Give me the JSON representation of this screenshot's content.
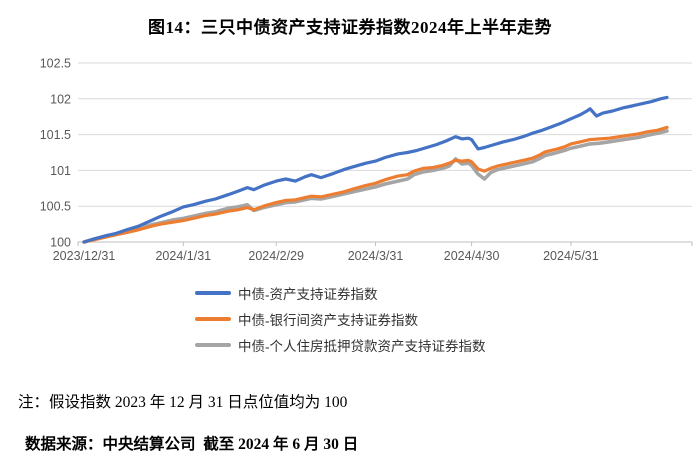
{
  "title": "图14：三只中债资产支持证券指数2024年上半年走势",
  "notes": {
    "note": "注：假设指数 2023 年 12 月 31 日点位值均为 100",
    "source": "数据来源：中央结算公司  截至 2024 年 6 月 30 日"
  },
  "colors": {
    "series_blue": "#4472C4",
    "series_orange": "#ED7D31",
    "series_gray": "#A5A5A5",
    "gridline": "#D9D9D9",
    "axis_line": "#BFBFBF",
    "tick_label": "#595959"
  },
  "chart_data": {
    "type": "line",
    "title": "图14：三只中债资产支持证券指数2024年上半年走势",
    "xlabel": "",
    "ylabel": "",
    "grid": true,
    "legend_position": "bottom-left",
    "ylim": [
      100,
      102.5
    ],
    "y_ticks": [
      100,
      100.5,
      101,
      101.5,
      102,
      102.5
    ],
    "x_unit": "days since 2023/12/31",
    "x_range_days": [
      0,
      182
    ],
    "x_tick_days": [
      0,
      31,
      60,
      91,
      121,
      152
    ],
    "x_tick_labels": [
      "2023/12/31",
      "2024/1/31",
      "2024/2/29",
      "2024/3/31",
      "2024/4/30",
      "2024/5/31"
    ],
    "series": [
      {
        "name": "中债-资产支持证券指数",
        "color": "#4472C4",
        "stroke_width": 3.2,
        "points": [
          [
            0,
            100.0
          ],
          [
            3,
            100.04
          ],
          [
            7,
            100.09
          ],
          [
            10,
            100.12
          ],
          [
            14,
            100.18
          ],
          [
            17,
            100.22
          ],
          [
            21,
            100.3
          ],
          [
            24,
            100.36
          ],
          [
            28,
            100.43
          ],
          [
            31,
            100.49
          ],
          [
            34,
            100.52
          ],
          [
            38,
            100.57
          ],
          [
            41,
            100.6
          ],
          [
            45,
            100.66
          ],
          [
            48,
            100.71
          ],
          [
            51,
            100.76
          ],
          [
            53,
            100.73
          ],
          [
            56,
            100.79
          ],
          [
            60,
            100.85
          ],
          [
            63,
            100.88
          ],
          [
            66,
            100.85
          ],
          [
            69,
            100.91
          ],
          [
            71,
            100.94
          ],
          [
            74,
            100.9
          ],
          [
            78,
            100.96
          ],
          [
            81,
            101.01
          ],
          [
            84,
            101.05
          ],
          [
            88,
            101.1
          ],
          [
            91,
            101.13
          ],
          [
            94,
            101.18
          ],
          [
            98,
            101.23
          ],
          [
            101,
            101.25
          ],
          [
            104,
            101.28
          ],
          [
            107,
            101.32
          ],
          [
            110,
            101.36
          ],
          [
            113,
            101.41
          ],
          [
            116,
            101.47
          ],
          [
            118,
            101.44
          ],
          [
            120,
            101.45
          ],
          [
            121,
            101.43
          ],
          [
            123,
            101.3
          ],
          [
            125,
            101.32
          ],
          [
            128,
            101.36
          ],
          [
            131,
            101.4
          ],
          [
            134,
            101.43
          ],
          [
            137,
            101.47
          ],
          [
            140,
            101.52
          ],
          [
            143,
            101.56
          ],
          [
            146,
            101.61
          ],
          [
            149,
            101.66
          ],
          [
            152,
            101.72
          ],
          [
            155,
            101.78
          ],
          [
            157,
            101.83
          ],
          [
            158,
            101.86
          ],
          [
            160,
            101.76
          ],
          [
            162,
            101.8
          ],
          [
            165,
            101.83
          ],
          [
            168,
            101.87
          ],
          [
            171,
            101.9
          ],
          [
            174,
            101.93
          ],
          [
            177,
            101.96
          ],
          [
            180,
            102.0
          ],
          [
            182,
            102.02
          ]
        ]
      },
      {
        "name": "中债-银行间资产支持证券指数",
        "color": "#ED7D31",
        "stroke_width": 3.2,
        "points": [
          [
            0,
            100.0
          ],
          [
            3,
            100.03
          ],
          [
            7,
            100.07
          ],
          [
            10,
            100.1
          ],
          [
            14,
            100.14
          ],
          [
            17,
            100.17
          ],
          [
            21,
            100.22
          ],
          [
            24,
            100.25
          ],
          [
            28,
            100.28
          ],
          [
            31,
            100.3
          ],
          [
            34,
            100.33
          ],
          [
            38,
            100.37
          ],
          [
            41,
            100.39
          ],
          [
            45,
            100.43
          ],
          [
            48,
            100.45
          ],
          [
            51,
            100.48
          ],
          [
            53,
            100.45
          ],
          [
            56,
            100.5
          ],
          [
            60,
            100.55
          ],
          [
            63,
            100.58
          ],
          [
            66,
            100.59
          ],
          [
            69,
            100.62
          ],
          [
            71,
            100.64
          ],
          [
            74,
            100.63
          ],
          [
            78,
            100.67
          ],
          [
            81,
            100.7
          ],
          [
            84,
            100.74
          ],
          [
            88,
            100.79
          ],
          [
            91,
            100.82
          ],
          [
            94,
            100.87
          ],
          [
            98,
            100.92
          ],
          [
            101,
            100.94
          ],
          [
            103,
            100.99
          ],
          [
            106,
            101.03
          ],
          [
            109,
            101.04
          ],
          [
            112,
            101.07
          ],
          [
            114,
            101.1
          ],
          [
            116,
            101.14
          ],
          [
            118,
            101.13
          ],
          [
            120,
            101.14
          ],
          [
            121,
            101.12
          ],
          [
            123,
            101.02
          ],
          [
            125,
            100.99
          ],
          [
            127,
            101.03
          ],
          [
            129,
            101.06
          ],
          [
            131,
            101.08
          ],
          [
            134,
            101.11
          ],
          [
            137,
            101.14
          ],
          [
            140,
            101.17
          ],
          [
            142,
            101.21
          ],
          [
            144,
            101.26
          ],
          [
            147,
            101.29
          ],
          [
            150,
            101.33
          ],
          [
            152,
            101.37
          ],
          [
            155,
            101.4
          ],
          [
            158,
            101.43
          ],
          [
            161,
            101.44
          ],
          [
            164,
            101.45
          ],
          [
            167,
            101.47
          ],
          [
            170,
            101.49
          ],
          [
            173,
            101.51
          ],
          [
            176,
            101.54
          ],
          [
            179,
            101.56
          ],
          [
            182,
            101.6
          ]
        ]
      },
      {
        "name": "中债-个人住房抵押贷款资产支持证券指数",
        "color": "#A5A5A5",
        "stroke_width": 3.6,
        "points": [
          [
            0,
            100.0
          ],
          [
            3,
            100.04
          ],
          [
            7,
            100.08
          ],
          [
            10,
            100.11
          ],
          [
            14,
            100.16
          ],
          [
            17,
            100.19
          ],
          [
            21,
            100.24
          ],
          [
            24,
            100.27
          ],
          [
            28,
            100.31
          ],
          [
            31,
            100.33
          ],
          [
            34,
            100.36
          ],
          [
            38,
            100.4
          ],
          [
            41,
            100.42
          ],
          [
            45,
            100.47
          ],
          [
            48,
            100.49
          ],
          [
            51,
            100.52
          ],
          [
            53,
            100.44
          ],
          [
            56,
            100.48
          ],
          [
            60,
            100.52
          ],
          [
            63,
            100.55
          ],
          [
            66,
            100.56
          ],
          [
            69,
            100.59
          ],
          [
            71,
            100.61
          ],
          [
            74,
            100.6
          ],
          [
            78,
            100.64
          ],
          [
            81,
            100.67
          ],
          [
            84,
            100.7
          ],
          [
            88,
            100.74
          ],
          [
            91,
            100.77
          ],
          [
            94,
            100.81
          ],
          [
            98,
            100.85
          ],
          [
            101,
            100.88
          ],
          [
            103,
            100.94
          ],
          [
            106,
            100.98
          ],
          [
            109,
            101.0
          ],
          [
            112,
            101.03
          ],
          [
            114,
            101.06
          ],
          [
            116,
            101.16
          ],
          [
            118,
            101.09
          ],
          [
            120,
            101.1
          ],
          [
            121,
            101.07
          ],
          [
            123,
            100.95
          ],
          [
            125,
            100.88
          ],
          [
            127,
            100.97
          ],
          [
            129,
            101.01
          ],
          [
            131,
            101.03
          ],
          [
            134,
            101.06
          ],
          [
            137,
            101.09
          ],
          [
            140,
            101.12
          ],
          [
            142,
            101.16
          ],
          [
            144,
            101.21
          ],
          [
            147,
            101.24
          ],
          [
            150,
            101.28
          ],
          [
            152,
            101.31
          ],
          [
            155,
            101.34
          ],
          [
            158,
            101.37
          ],
          [
            161,
            101.38
          ],
          [
            164,
            101.4
          ],
          [
            167,
            101.42
          ],
          [
            170,
            101.44
          ],
          [
            173,
            101.46
          ],
          [
            176,
            101.49
          ],
          [
            179,
            101.52
          ],
          [
            182,
            101.55
          ]
        ]
      }
    ]
  }
}
